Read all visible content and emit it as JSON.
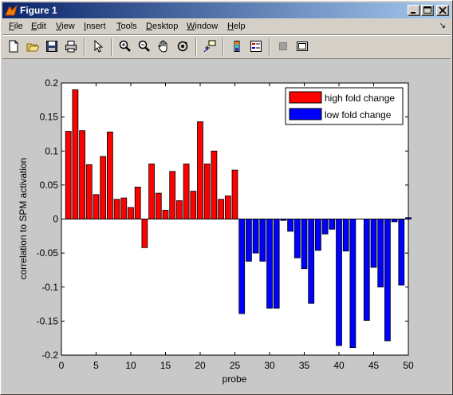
{
  "window": {
    "title": "Figure 1",
    "title_icon": "matlab-figure-icon"
  },
  "menubar": {
    "items": [
      {
        "label": "File",
        "accel": "F"
      },
      {
        "label": "Edit",
        "accel": "E"
      },
      {
        "label": "View",
        "accel": "V"
      },
      {
        "label": "Insert",
        "accel": "I"
      },
      {
        "label": "Tools",
        "accel": "T"
      },
      {
        "label": "Desktop",
        "accel": "D"
      },
      {
        "label": "Window",
        "accel": "W"
      },
      {
        "label": "Help",
        "accel": "H"
      }
    ],
    "dock_arrow": "↘"
  },
  "toolbar": {
    "tools": [
      "new-figure-icon",
      "open-file-icon",
      "save-icon",
      "print-icon",
      "edit-plot-arrow-icon",
      "zoom-in-icon",
      "zoom-out-icon",
      "pan-hand-icon",
      "rotate-3d-icon",
      "data-cursor-icon",
      "colorbar-icon",
      "legend-icon",
      "hide-plot-tools-icon",
      "show-plot-tools-icon"
    ]
  },
  "colors": {
    "high": "#ff0000",
    "low": "#0000ff",
    "figure_bg": "#c8c8c8",
    "axes_bg": "#ffffff"
  },
  "chart_data": {
    "type": "bar",
    "title": "",
    "xlabel": "probe",
    "ylabel": "correlation to SPM activation",
    "xlim": [
      0,
      50
    ],
    "ylim": [
      -0.2,
      0.2
    ],
    "xticks": [
      "0",
      "5",
      "10",
      "15",
      "20",
      "25",
      "30",
      "35",
      "40",
      "45",
      "50"
    ],
    "yticks": [
      "-0.2",
      "-0.15",
      "-0.1",
      "-0.05",
      "0",
      "0.05",
      "0.1",
      "0.15",
      "0.2"
    ],
    "legend_position": "top-right",
    "series": [
      {
        "name": "high fold change",
        "x": [
          1,
          2,
          3,
          4,
          5,
          6,
          7,
          8,
          9,
          10,
          11,
          12,
          13,
          14,
          15,
          16,
          17,
          18,
          19,
          20,
          21,
          22,
          23,
          24,
          25
        ],
        "values": [
          0.129,
          0.19,
          0.13,
          0.08,
          0.036,
          0.092,
          0.128,
          0.029,
          0.031,
          0.017,
          0.047,
          -0.042,
          0.081,
          0.038,
          0.013,
          0.07,
          0.027,
          0.081,
          0.041,
          0.143,
          0.081,
          0.1,
          0.029,
          0.034,
          0.072
        ]
      },
      {
        "name": "low fold change",
        "x": [
          26,
          27,
          28,
          29,
          30,
          31,
          32,
          33,
          34,
          35,
          36,
          37,
          38,
          39,
          40,
          41,
          42,
          43,
          44,
          45,
          46,
          47,
          48,
          49,
          50
        ],
        "values": [
          -0.139,
          -0.062,
          -0.05,
          -0.062,
          -0.131,
          -0.131,
          -0.002,
          -0.018,
          -0.057,
          -0.073,
          -0.124,
          -0.046,
          -0.022,
          -0.015,
          -0.186,
          -0.047,
          -0.189,
          0.0,
          -0.149,
          -0.071,
          -0.1,
          -0.179,
          -0.004,
          -0.097,
          0.002
        ]
      }
    ]
  }
}
